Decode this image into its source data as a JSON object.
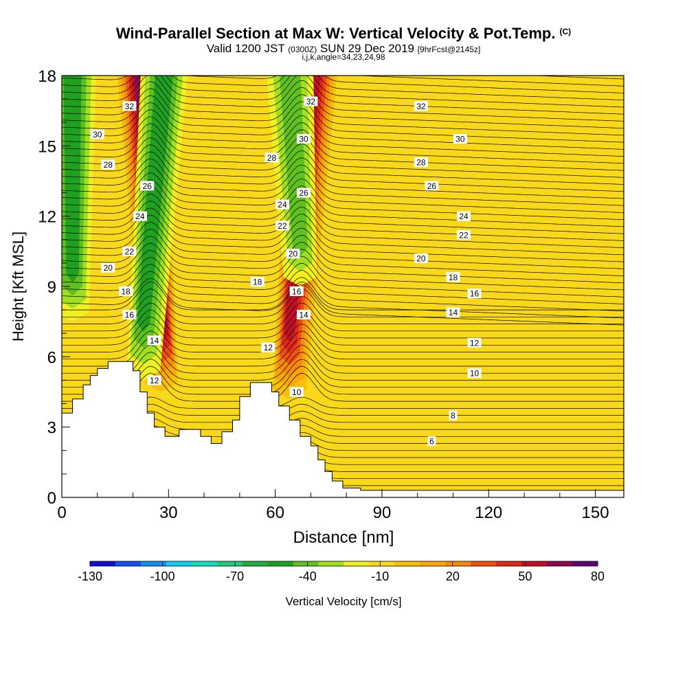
{
  "title": {
    "main": "Wind-Parallel Section at Max W: Vertical Velocity & Pot.Temp.",
    "copyright": "(C)",
    "valid_prefix": "Valid 1200 JST",
    "valid_utc": "(0300Z)",
    "valid_date": "SUN 29 Dec 2019",
    "forecast": "[9hrFcst@2145z]",
    "indices": "i,j,k,angle=34,23,24,98"
  },
  "colors": {
    "ramp": [
      "#1010d0",
      "#1050f0",
      "#1090f0",
      "#10d0f0",
      "#10e0c0",
      "#20c880",
      "#20b040",
      "#20a020",
      "#60c020",
      "#a0e020",
      "#f0f020",
      "#f8d818",
      "#f8c008",
      "#f8a808",
      "#f88808",
      "#f05010",
      "#e02818",
      "#c01028",
      "#900850",
      "#600078"
    ]
  },
  "colorbar": {
    "label": "Vertical Velocity [cm/s]",
    "ticks": [
      "-130",
      "-100",
      "-70",
      "-40",
      "-10",
      "20",
      "50",
      "80"
    ]
  },
  "chart_data": {
    "type": "heatmap",
    "xlabel": "Distance [nm]",
    "ylabel": "Height [Kft MSL]",
    "xlim": [
      0,
      158
    ],
    "ylim": [
      0,
      18
    ],
    "x_ticks": [
      "0",
      "30",
      "60",
      "90",
      "120",
      "150"
    ],
    "y_ticks": [
      "0",
      "3",
      "6",
      "9",
      "12",
      "15",
      "18"
    ],
    "colorbar_range": [
      -130,
      80
    ],
    "background_value": -5,
    "features": [
      {
        "kind": "updraft",
        "x_at_top": 22,
        "x_at_bottom": 28,
        "top_kft": 18,
        "bottom_kft": 4.5,
        "peak_cm_s": 70
      },
      {
        "kind": "updraft",
        "x_at_top": 71,
        "x_at_bottom": 64,
        "top_kft": 18,
        "bottom_kft": 4.2,
        "peak_cm_s": 60
      },
      {
        "kind": "downdraft",
        "x_at_top": 3,
        "x_at_bottom": 3,
        "top_kft": 18,
        "bottom_kft": 7.5,
        "peak_cm_s": -55
      },
      {
        "kind": "downdraft",
        "x_at_top": 29,
        "x_at_bottom": 23,
        "top_kft": 18,
        "bottom_kft": 5,
        "peak_cm_s": -50
      },
      {
        "kind": "downdraft",
        "x_at_top": 64,
        "x_at_bottom": 67,
        "top_kft": 18,
        "bottom_kft": 9,
        "peak_cm_s": -45
      }
    ],
    "terrain_kft": [
      [
        0,
        3.6
      ],
      [
        3,
        3.6
      ],
      [
        3,
        4.2
      ],
      [
        6,
        4.2
      ],
      [
        6,
        4.8
      ],
      [
        8,
        4.8
      ],
      [
        8,
        5.2
      ],
      [
        10,
        5.2
      ],
      [
        10,
        5.5
      ],
      [
        13,
        5.5
      ],
      [
        13,
        5.8
      ],
      [
        20,
        5.8
      ],
      [
        20,
        5.4
      ],
      [
        22,
        5.4
      ],
      [
        22,
        4.5
      ],
      [
        24,
        4.5
      ],
      [
        24,
        3.6
      ],
      [
        26,
        3.6
      ],
      [
        26,
        3.0
      ],
      [
        29,
        3.0
      ],
      [
        29,
        2.6
      ],
      [
        33,
        2.6
      ],
      [
        33,
        2.9
      ],
      [
        39,
        2.9
      ],
      [
        39,
        2.6
      ],
      [
        42,
        2.6
      ],
      [
        42,
        2.3
      ],
      [
        45,
        2.3
      ],
      [
        45,
        2.8
      ],
      [
        48,
        2.8
      ],
      [
        48,
        3.3
      ],
      [
        50,
        3.3
      ],
      [
        50,
        4.3
      ],
      [
        53,
        4.3
      ],
      [
        53,
        4.9
      ],
      [
        59,
        4.9
      ],
      [
        59,
        4.5
      ],
      [
        61,
        4.5
      ],
      [
        61,
        3.9
      ],
      [
        64,
        3.9
      ],
      [
        64,
        3.3
      ],
      [
        67,
        3.3
      ],
      [
        67,
        2.6
      ],
      [
        70,
        2.6
      ],
      [
        70,
        2.2
      ],
      [
        72,
        2.2
      ],
      [
        72,
        1.6
      ],
      [
        74,
        1.6
      ],
      [
        74,
        1.1
      ],
      [
        76,
        1.1
      ],
      [
        76,
        0.7
      ],
      [
        79,
        0.7
      ],
      [
        79,
        0.4
      ],
      [
        84,
        0.4
      ],
      [
        84,
        0.3
      ],
      [
        158,
        0.3
      ]
    ],
    "theta_contour_labels": [
      {
        "value": "32",
        "x": 19,
        "y": 16.7
      },
      {
        "value": "30",
        "x": 10,
        "y": 15.5
      },
      {
        "value": "28",
        "x": 13,
        "y": 14.2
      },
      {
        "value": "26",
        "x": 24,
        "y": 13.3
      },
      {
        "value": "24",
        "x": 22,
        "y": 12.0
      },
      {
        "value": "22",
        "x": 19,
        "y": 10.5
      },
      {
        "value": "20",
        "x": 13,
        "y": 9.8
      },
      {
        "value": "18",
        "x": 18,
        "y": 8.8
      },
      {
        "value": "16",
        "x": 19,
        "y": 7.8
      },
      {
        "value": "14",
        "x": 26,
        "y": 6.7
      },
      {
        "value": "12",
        "x": 26,
        "y": 5.0
      },
      {
        "value": "32",
        "x": 70,
        "y": 16.9
      },
      {
        "value": "30",
        "x": 68,
        "y": 15.3
      },
      {
        "value": "28",
        "x": 59,
        "y": 14.5
      },
      {
        "value": "26",
        "x": 68,
        "y": 13.0
      },
      {
        "value": "24",
        "x": 62,
        "y": 12.5
      },
      {
        "value": "22",
        "x": 62,
        "y": 11.6
      },
      {
        "value": "20",
        "x": 65,
        "y": 10.4
      },
      {
        "value": "18",
        "x": 55,
        "y": 9.2
      },
      {
        "value": "16",
        "x": 66,
        "y": 8.8
      },
      {
        "value": "14",
        "x": 68,
        "y": 7.8
      },
      {
        "value": "12",
        "x": 58,
        "y": 6.4
      },
      {
        "value": "10",
        "x": 66,
        "y": 4.5
      },
      {
        "value": "32",
        "x": 101,
        "y": 16.7
      },
      {
        "value": "30",
        "x": 112,
        "y": 15.3
      },
      {
        "value": "28",
        "x": 101,
        "y": 14.3
      },
      {
        "value": "26",
        "x": 104,
        "y": 13.3
      },
      {
        "value": "24",
        "x": 113,
        "y": 12.0
      },
      {
        "value": "22",
        "x": 113,
        "y": 11.2
      },
      {
        "value": "20",
        "x": 101,
        "y": 10.2
      },
      {
        "value": "18",
        "x": 110,
        "y": 9.4
      },
      {
        "value": "16",
        "x": 116,
        "y": 8.7
      },
      {
        "value": "14",
        "x": 110,
        "y": 7.9
      },
      {
        "value": "12",
        "x": 116,
        "y": 6.6
      },
      {
        "value": "10",
        "x": 116,
        "y": 5.3
      },
      {
        "value": "8",
        "x": 110,
        "y": 3.5
      },
      {
        "value": "6",
        "x": 104,
        "y": 2.4
      }
    ]
  }
}
